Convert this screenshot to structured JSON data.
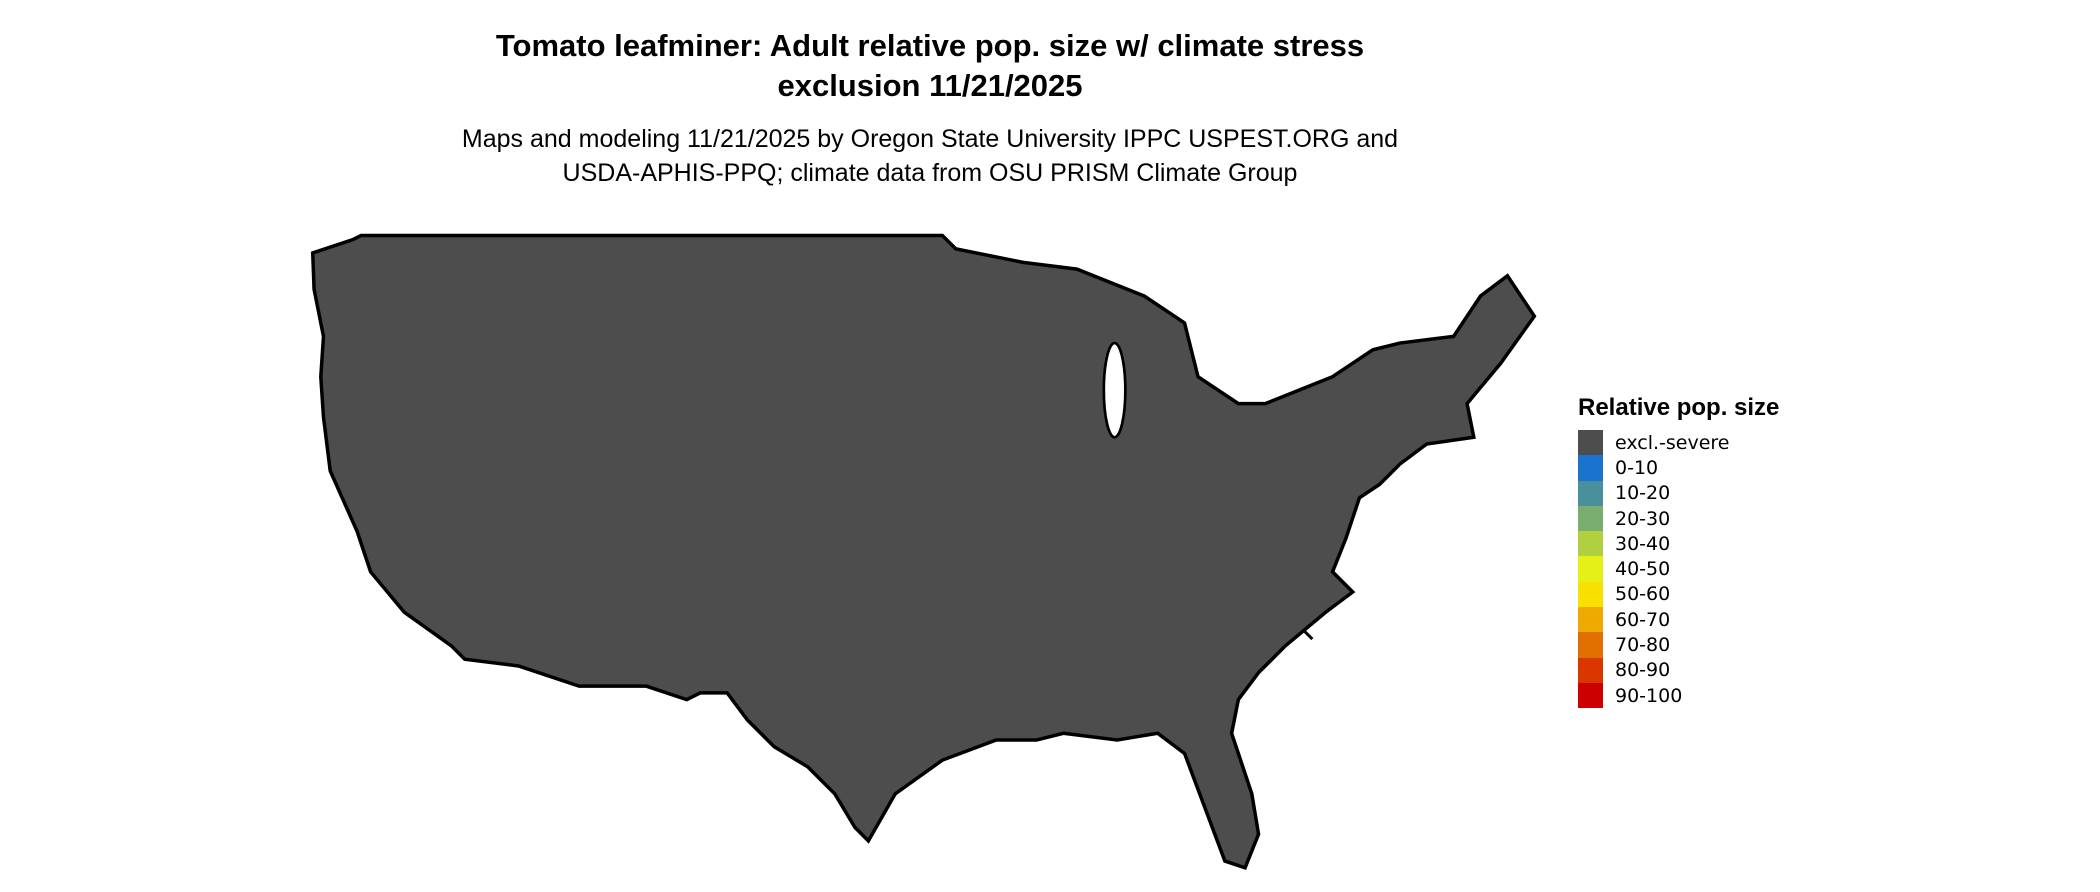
{
  "title": {
    "line1": "Tomato leafminer: Adult relative pop. size w/ climate stress",
    "line2": "exclusion 11/21/2025"
  },
  "subtitle": {
    "line1": "Maps and modeling 11/21/2025 by Oregon State University IPPC USPEST.ORG and",
    "line2": "USDA-APHIS-PPQ; climate data from OSU PRISM Climate Group"
  },
  "map": {
    "region": "Contiguous United States",
    "legend": {
      "title": "Relative pop. size",
      "items": [
        {
          "label": "excl.-severe",
          "color": "#4d4d4d"
        },
        {
          "label": "0-10",
          "color": "#1a73cc"
        },
        {
          "label": "10-20",
          "color": "#4a8f9c"
        },
        {
          "label": "20-30",
          "color": "#7aae70"
        },
        {
          "label": "30-40",
          "color": "#b0d040"
        },
        {
          "label": "40-50",
          "color": "#e6f016"
        },
        {
          "label": "50-60",
          "color": "#f8e000"
        },
        {
          "label": "60-70",
          "color": "#eeaa00"
        },
        {
          "label": "70-80",
          "color": "#e27000"
        },
        {
          "label": "80-90",
          "color": "#da3600"
        },
        {
          "label": "90-100",
          "color": "#cc0000"
        }
      ]
    }
  }
}
